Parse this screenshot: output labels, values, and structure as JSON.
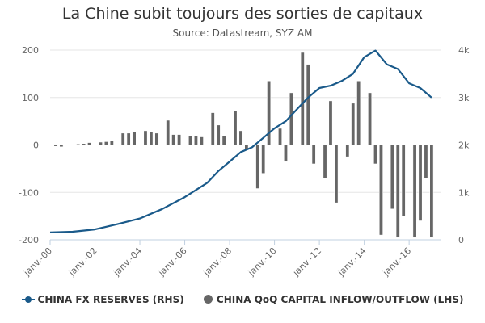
{
  "chart_data": {
    "type": "bar+line",
    "title": "La Chine subit toujours des sorties de capitaux",
    "subtitle": "Source: Datastream, SYZ AM",
    "x_tick_labels": [
      "janv.-00",
      "janv.-02",
      "janv.-04",
      "janv.-06",
      "janv.-08",
      "janv.-10",
      "janv.-12",
      "janv.-14",
      "janv.-16"
    ],
    "left_axis": {
      "ticks": [
        200,
        100,
        0,
        -100,
        -200
      ],
      "ylim": [
        -200,
        200
      ]
    },
    "right_axis": {
      "ticks": [
        "4k",
        "3k",
        "2k",
        "1k",
        "0"
      ],
      "ylim": [
        0,
        4000
      ]
    },
    "grid": true,
    "legend_position": "bottom",
    "series": [
      {
        "name": "CHINA FX RESERVES (RHS)",
        "axis": "right",
        "kind": "line",
        "color": "#1a5a8a",
        "points": [
          [
            2000.0,
            157
          ],
          [
            2001.0,
            170
          ],
          [
            2002.0,
            220
          ],
          [
            2003.0,
            330
          ],
          [
            2004.0,
            450
          ],
          [
            2005.0,
            650
          ],
          [
            2006.0,
            900
          ],
          [
            2006.5,
            1050
          ],
          [
            2007.0,
            1200
          ],
          [
            2007.5,
            1450
          ],
          [
            2008.0,
            1650
          ],
          [
            2008.5,
            1850
          ],
          [
            2009.0,
            1950
          ],
          [
            2009.5,
            2150
          ],
          [
            2010.0,
            2350
          ],
          [
            2010.5,
            2500
          ],
          [
            2011.0,
            2750
          ],
          [
            2011.5,
            3000
          ],
          [
            2012.0,
            3200
          ],
          [
            2012.5,
            3250
          ],
          [
            2013.0,
            3350
          ],
          [
            2013.5,
            3500
          ],
          [
            2014.0,
            3850
          ],
          [
            2014.5,
            3990
          ],
          [
            2015.0,
            3700
          ],
          [
            2015.5,
            3600
          ],
          [
            2016.0,
            3300
          ],
          [
            2016.5,
            3200
          ],
          [
            2017.0,
            3000
          ]
        ]
      },
      {
        "name": "CHINA QoQ CAPITAL INFLOW/OUTFLOW (LHS)",
        "axis": "left",
        "kind": "bar",
        "color": "#666666",
        "points": [
          [
            2000.25,
            -3
          ],
          [
            2000.5,
            -4
          ],
          [
            2001.25,
            2
          ],
          [
            2001.5,
            3
          ],
          [
            2001.75,
            5
          ],
          [
            2002.25,
            6
          ],
          [
            2002.5,
            7
          ],
          [
            2002.75,
            9
          ],
          [
            2003.25,
            25
          ],
          [
            2003.5,
            25
          ],
          [
            2003.75,
            27
          ],
          [
            2004.25,
            30
          ],
          [
            2004.5,
            28
          ],
          [
            2004.75,
            25
          ],
          [
            2005.25,
            52
          ],
          [
            2005.5,
            22
          ],
          [
            2005.75,
            22
          ],
          [
            2006.25,
            20
          ],
          [
            2006.5,
            20
          ],
          [
            2006.75,
            17
          ],
          [
            2007.25,
            68
          ],
          [
            2007.5,
            42
          ],
          [
            2007.75,
            20
          ],
          [
            2008.25,
            72
          ],
          [
            2008.5,
            30
          ],
          [
            2008.75,
            -10
          ],
          [
            2009.25,
            -92
          ],
          [
            2009.5,
            -60
          ],
          [
            2009.75,
            135
          ],
          [
            2010.25,
            35
          ],
          [
            2010.5,
            -35
          ],
          [
            2010.75,
            110
          ],
          [
            2011.25,
            195
          ],
          [
            2011.5,
            170
          ],
          [
            2011.75,
            -40
          ],
          [
            2012.25,
            -70
          ],
          [
            2012.5,
            93
          ],
          [
            2012.75,
            -122
          ],
          [
            2013.25,
            -25
          ],
          [
            2013.5,
            88
          ],
          [
            2013.75,
            135
          ],
          [
            2014.25,
            110
          ],
          [
            2014.5,
            -40
          ],
          [
            2014.75,
            -190
          ],
          [
            2015.25,
            -135
          ],
          [
            2015.5,
            -195
          ],
          [
            2015.75,
            -150
          ],
          [
            2016.25,
            -195
          ],
          [
            2016.5,
            -160
          ],
          [
            2016.75,
            -70
          ],
          [
            2017.0,
            -195
          ]
        ]
      }
    ]
  }
}
